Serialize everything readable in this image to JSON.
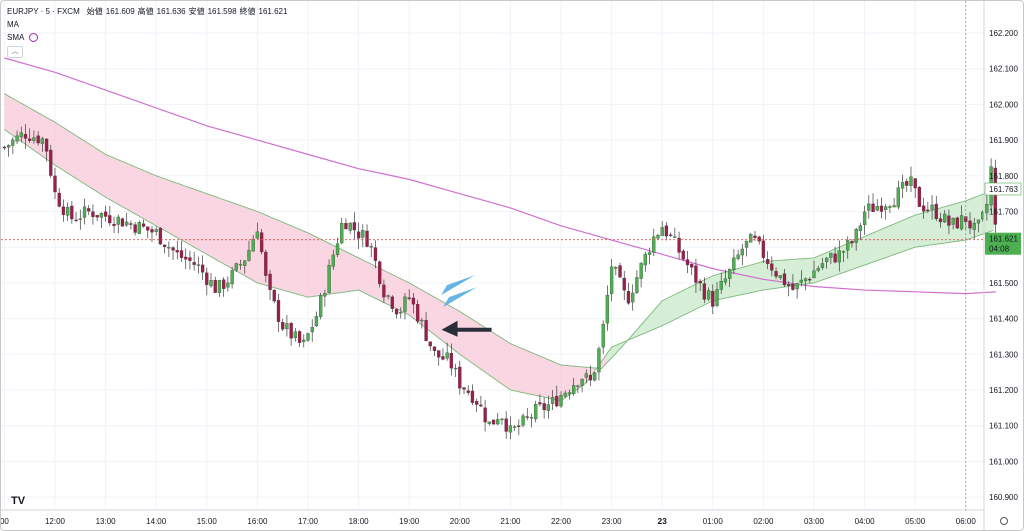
{
  "legend": {
    "symbol_line": "EURJPY · 5 · FXCM",
    "open_label": "始値",
    "open_value": "161.609",
    "high_label": "高値",
    "high_value": "161.636",
    "low_label": "安値",
    "low_value": "161.598",
    "close_label": "終値",
    "close_value": "161.621",
    "indicator_ma": "MA",
    "indicator_sma": "SMA",
    "collapse_icon": "chevron-up-icon"
  },
  "price_axis": {
    "ticks": [
      "162.200",
      "162.100",
      "162.000",
      "161.900",
      "161.800",
      "161.700",
      "161.600",
      "161.500",
      "161.400",
      "161.300",
      "161.200",
      "161.100",
      "161.000",
      "160.900"
    ],
    "ma_label": "161.763",
    "last_price": "161.621",
    "countdown": "04:08"
  },
  "time_axis": {
    "ticks": [
      {
        "label": "00",
        "hour": 11.0
      },
      {
        "label": "12:00",
        "hour": 12.0
      },
      {
        "label": "13:00",
        "hour": 13.0
      },
      {
        "label": "14:00",
        "hour": 14.0
      },
      {
        "label": "15:00",
        "hour": 15.0
      },
      {
        "label": "16:00",
        "hour": 16.0
      },
      {
        "label": "17:00",
        "hour": 17.0
      },
      {
        "label": "18:00",
        "hour": 18.0
      },
      {
        "label": "19:00",
        "hour": 19.0
      },
      {
        "label": "20:00",
        "hour": 20.0
      },
      {
        "label": "21:00",
        "hour": 21.0
      },
      {
        "label": "22:00",
        "hour": 22.0
      },
      {
        "label": "23:00",
        "hour": 23.0
      },
      {
        "label": "23",
        "hour": 24.0,
        "bold": true
      },
      {
        "label": "01:00",
        "hour": 25.0
      },
      {
        "label": "02:00",
        "hour": 26.0
      },
      {
        "label": "03:00",
        "hour": 27.0
      },
      {
        "label": "04:00",
        "hour": 28.0
      },
      {
        "label": "05:00",
        "hour": 29.0
      },
      {
        "label": "06:00",
        "hour": 30.0
      }
    ]
  },
  "logo": "TV",
  "colors": {
    "bull": "#4caf50",
    "bear": "#9c1e4a",
    "ma_line": "#7cb87c",
    "sma_line": "#d070d0",
    "cloud_bear": "#f8c8d8",
    "cloud_bull": "#c8e8c8",
    "last_price_badge": "#4caf50",
    "ma_badge_text": "#4caf50",
    "arrow_blue": "#4aa8e0",
    "arrow_dark": "#2a2e39"
  },
  "chart_data": {
    "type": "candlestick",
    "symbol": "EURJPY",
    "timeframe": "5",
    "ylim": [
      160.86,
      162.28
    ],
    "xlim_hours": [
      11.0,
      31.6
    ],
    "grid": true,
    "anchors_close": [
      [
        11.0,
        161.88
      ],
      [
        11.4,
        161.92
      ],
      [
        11.8,
        161.9
      ],
      [
        12.0,
        161.75
      ],
      [
        12.3,
        161.68
      ],
      [
        12.7,
        161.7
      ],
      [
        13.2,
        161.68
      ],
      [
        13.6,
        161.66
      ],
      [
        14.0,
        161.64
      ],
      [
        14.4,
        161.58
      ],
      [
        14.8,
        161.55
      ],
      [
        15.2,
        161.48
      ],
      [
        15.5,
        161.52
      ],
      [
        15.8,
        161.58
      ],
      [
        16.0,
        161.66
      ],
      [
        16.2,
        161.48
      ],
      [
        16.5,
        161.38
      ],
      [
        16.9,
        161.32
      ],
      [
        17.2,
        161.42
      ],
      [
        17.5,
        161.58
      ],
      [
        17.7,
        161.68
      ],
      [
        18.0,
        161.64
      ],
      [
        18.2,
        161.62
      ],
      [
        18.5,
        161.48
      ],
      [
        18.8,
        161.42
      ],
      [
        19.0,
        161.46
      ],
      [
        19.2,
        161.4
      ],
      [
        19.5,
        161.3
      ],
      [
        19.8,
        161.28
      ],
      [
        20.0,
        161.22
      ],
      [
        20.3,
        161.18
      ],
      [
        20.6,
        161.1
      ],
      [
        20.8,
        161.14
      ],
      [
        21.0,
        161.08
      ],
      [
        21.2,
        161.1
      ],
      [
        21.5,
        161.14
      ],
      [
        21.8,
        161.16
      ],
      [
        22.1,
        161.2
      ],
      [
        22.4,
        161.24
      ],
      [
        22.6,
        161.22
      ],
      [
        22.8,
        161.34
      ],
      [
        23.0,
        161.55
      ],
      [
        23.3,
        161.45
      ],
      [
        23.6,
        161.55
      ],
      [
        23.8,
        161.62
      ],
      [
        24.0,
        161.66
      ],
      [
        24.2,
        161.62
      ],
      [
        24.5,
        161.55
      ],
      [
        24.8,
        161.48
      ],
      [
        25.0,
        161.45
      ],
      [
        25.3,
        161.52
      ],
      [
        25.6,
        161.6
      ],
      [
        25.8,
        161.62
      ],
      [
        26.0,
        161.58
      ],
      [
        26.3,
        161.52
      ],
      [
        26.6,
        161.48
      ],
      [
        26.9,
        161.52
      ],
      [
        27.2,
        161.56
      ],
      [
        27.5,
        161.58
      ],
      [
        27.8,
        161.62
      ],
      [
        28.0,
        161.7
      ],
      [
        28.3,
        161.72
      ],
      [
        28.6,
        161.74
      ],
      [
        28.9,
        161.78
      ],
      [
        29.1,
        161.72
      ],
      [
        29.4,
        161.7
      ],
      [
        29.7,
        161.66
      ],
      [
        30.0,
        161.68
      ],
      [
        30.2,
        161.64
      ],
      [
        30.4,
        161.7
      ],
      [
        30.5,
        161.82
      ],
      [
        30.6,
        161.62
      ]
    ],
    "sma_points": [
      [
        11.0,
        162.13
      ],
      [
        12.0,
        162.09
      ],
      [
        13.0,
        162.04
      ],
      [
        14.0,
        161.99
      ],
      [
        15.0,
        161.94
      ],
      [
        16.0,
        161.9
      ],
      [
        17.0,
        161.86
      ],
      [
        18.0,
        161.82
      ],
      [
        19.0,
        161.79
      ],
      [
        20.0,
        161.75
      ],
      [
        21.0,
        161.71
      ],
      [
        22.0,
        161.66
      ],
      [
        23.0,
        161.62
      ],
      [
        24.0,
        161.58
      ],
      [
        25.0,
        161.54
      ],
      [
        26.0,
        161.51
      ],
      [
        27.0,
        161.49
      ],
      [
        28.0,
        161.48
      ],
      [
        29.0,
        161.475
      ],
      [
        30.0,
        161.47
      ],
      [
        30.6,
        161.475
      ]
    ],
    "ma_fast_points": [
      [
        11.0,
        162.03
      ],
      [
        12.0,
        161.95
      ],
      [
        13.0,
        161.86
      ],
      [
        14.0,
        161.8
      ],
      [
        15.0,
        161.75
      ],
      [
        16.0,
        161.7
      ],
      [
        17.0,
        161.64
      ],
      [
        18.0,
        161.57
      ],
      [
        19.0,
        161.5
      ],
      [
        20.0,
        161.42
      ],
      [
        21.0,
        161.33
      ],
      [
        22.0,
        161.27
      ],
      [
        22.8,
        161.26
      ],
      [
        23.2,
        161.32
      ],
      [
        24.0,
        161.45
      ],
      [
        25.0,
        161.52
      ],
      [
        26.0,
        161.56
      ],
      [
        27.0,
        161.57
      ],
      [
        28.0,
        161.63
      ],
      [
        29.0,
        161.69
      ],
      [
        30.0,
        161.73
      ],
      [
        30.6,
        161.763
      ]
    ],
    "ma_slow_points": [
      [
        11.0,
        161.93
      ],
      [
        12.0,
        161.83
      ],
      [
        13.0,
        161.74
      ],
      [
        14.0,
        161.66
      ],
      [
        15.0,
        161.58
      ],
      [
        16.0,
        161.5
      ],
      [
        17.0,
        161.46
      ],
      [
        18.0,
        161.48
      ],
      [
        19.0,
        161.41
      ],
      [
        20.0,
        161.3
      ],
      [
        21.0,
        161.2
      ],
      [
        22.0,
        161.17
      ],
      [
        22.5,
        161.22
      ],
      [
        23.0,
        161.32
      ],
      [
        24.0,
        161.38
      ],
      [
        25.0,
        161.45
      ],
      [
        26.0,
        161.48
      ],
      [
        27.0,
        161.5
      ],
      [
        28.0,
        161.55
      ],
      [
        29.0,
        161.6
      ],
      [
        30.0,
        161.62
      ],
      [
        30.6,
        161.65
      ]
    ],
    "last_price": 161.621,
    "ma_value": 161.763,
    "current_time_hour": 30.0,
    "annotations": [
      {
        "type": "arrow",
        "color": "blue",
        "price": 161.46,
        "hour": 19.5
      },
      {
        "type": "arrow",
        "color": "dark",
        "price": 161.38,
        "hour": 19.6
      }
    ]
  }
}
